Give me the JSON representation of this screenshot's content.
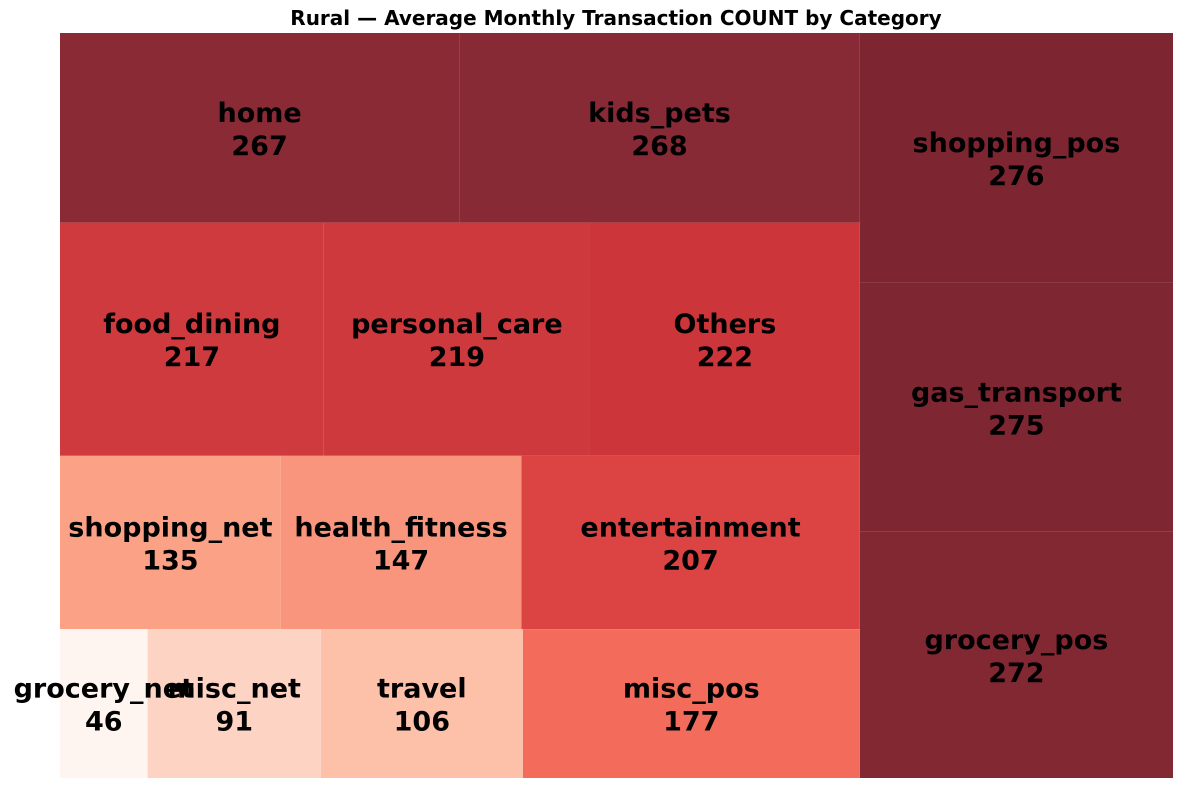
{
  "chart_data": {
    "type": "treemap",
    "title": "Rural — Average Monthly Transaction COUNT by Category",
    "items": [
      {
        "label": "shopping_pos",
        "value": 276,
        "color": "#7d2530"
      },
      {
        "label": "gas_transport",
        "value": 275,
        "color": "#7e2631"
      },
      {
        "label": "grocery_pos",
        "value": 272,
        "color": "#822832"
      },
      {
        "label": "kids_pets",
        "value": 268,
        "color": "#882a35"
      },
      {
        "label": "home",
        "value": 267,
        "color": "#8a2a35"
      },
      {
        "label": "Others",
        "value": 222,
        "color": "#cc363b"
      },
      {
        "label": "personal_care",
        "value": 219,
        "color": "#cd393d"
      },
      {
        "label": "food_dining",
        "value": 217,
        "color": "#ce3a3e"
      },
      {
        "label": "entertainment",
        "value": 207,
        "color": "#dc4443"
      },
      {
        "label": "misc_pos",
        "value": 177,
        "color": "#f26b5b"
      },
      {
        "label": "health_fitness",
        "value": 147,
        "color": "#f9957c"
      },
      {
        "label": "shopping_net",
        "value": 135,
        "color": "#fba185"
      },
      {
        "label": "travel",
        "value": 106,
        "color": "#fdc1aa"
      },
      {
        "label": "misc_net",
        "value": 91,
        "color": "#fdd3c3"
      },
      {
        "label": "grocery_net",
        "value": 46,
        "color": "#fff5f0"
      }
    ]
  }
}
